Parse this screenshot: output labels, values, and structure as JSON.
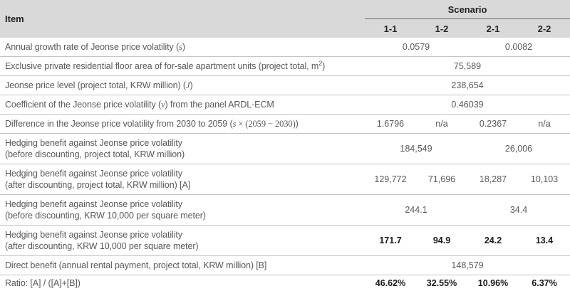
{
  "colors": {
    "header_bg": "#d9d9d9",
    "header_fg": "#242424",
    "body_fg": "#595959",
    "strong_fg": "#1a1a1a",
    "line_light": "#c4c4c4",
    "line_dark": "#6b6b6b",
    "line_bottom": "#3d3d3d"
  },
  "table": {
    "item_header": "Item",
    "scenario_header": "Scenario",
    "scenario_cols": [
      "1-1",
      "1-2",
      "2-1",
      "2-2"
    ],
    "rows": [
      {
        "item": [
          [
            {
              "t": "p",
              "v": "Annual growth rate of Jeonse price volatility ("
            },
            {
              "t": "i",
              "v": "s"
            },
            {
              "t": "p",
              "v": ")"
            }
          ]
        ],
        "cells": [
          {
            "v": "0.0579",
            "span": 2
          },
          {
            "v": "0.0082",
            "span": 2
          }
        ]
      },
      {
        "item": [
          [
            {
              "t": "p",
              "v": "Exclusive private residential floor area of for-sale apartment units (project total, m"
            },
            {
              "t": "sup",
              "v": "2"
            },
            {
              "t": "p",
              "v": ")"
            }
          ]
        ],
        "cells": [
          {
            "v": "75,589",
            "span": 4
          }
        ]
      },
      {
        "item": [
          [
            {
              "t": "p",
              "v": "Jeonse price level (project total, KRW million) ("
            },
            {
              "t": "i",
              "v": "J"
            },
            {
              "t": "p",
              "v": ")"
            }
          ]
        ],
        "cells": [
          {
            "v": "238,654",
            "span": 4
          }
        ]
      },
      {
        "item": [
          [
            {
              "t": "p",
              "v": "Coefficient of the Jeonse price volatility ("
            },
            {
              "t": "i",
              "v": "v"
            },
            {
              "t": "p",
              "v": ") from the panel ARDL-ECM"
            }
          ]
        ],
        "cells": [
          {
            "v": "0.46039",
            "span": 4
          }
        ]
      },
      {
        "item": [
          [
            {
              "t": "p",
              "v": "Difference in the Jeonse price volatility from 2030 to 2059 ("
            },
            {
              "t": "i",
              "v": "s"
            },
            {
              "t": "r",
              "v": " × (2059 − 2030)"
            },
            {
              "t": "p",
              "v": ")"
            }
          ]
        ],
        "cells": [
          {
            "v": "1.6796"
          },
          {
            "v": "n/a"
          },
          {
            "v": "0.2367"
          },
          {
            "v": "n/a"
          }
        ]
      },
      {
        "item": [
          [
            {
              "t": "p",
              "v": "Hedging benefit against Jeonse price volatility"
            }
          ],
          [
            {
              "t": "p",
              "v": "(before discounting, project total, KRW million)"
            }
          ]
        ],
        "cells": [
          {
            "v": "184,549",
            "span": 2
          },
          {
            "v": "26,006",
            "span": 2
          }
        ]
      },
      {
        "item": [
          [
            {
              "t": "p",
              "v": "Hedging benefit against Jeonse price volatility"
            }
          ],
          [
            {
              "t": "p",
              "v": "(after discounting, project total, KRW million) [A]"
            }
          ]
        ],
        "cells": [
          {
            "v": "129,772"
          },
          {
            "v": "71,696"
          },
          {
            "v": "18,287"
          },
          {
            "v": "10,103"
          }
        ]
      },
      {
        "item": [
          [
            {
              "t": "p",
              "v": "Hedging benefit against Jeonse price volatility"
            }
          ],
          [
            {
              "t": "p",
              "v": "(before discounting, KRW 10,000 per square meter)"
            }
          ]
        ],
        "cells": [
          {
            "v": "244.1",
            "span": 2
          },
          {
            "v": "34.4",
            "span": 2
          }
        ]
      },
      {
        "item": [
          [
            {
              "t": "p",
              "v": "Hedging benefit against Jeonse price volatility"
            }
          ],
          [
            {
              "t": "p",
              "v": "(after discounting, KRW 10,000 per square meter)"
            }
          ]
        ],
        "cells": [
          {
            "v": "171.7",
            "b": true
          },
          {
            "v": "94.9",
            "b": true
          },
          {
            "v": "24.2",
            "b": true
          },
          {
            "v": "13.4",
            "b": true
          }
        ]
      },
      {
        "item": [
          [
            {
              "t": "p",
              "v": "Direct benefit (annual rental payment, project total, KRW million) [B]"
            }
          ]
        ],
        "cells": [
          {
            "v": "148,579",
            "span": 4
          }
        ]
      },
      {
        "item": [
          [
            {
              "t": "p",
              "v": "Ratio: [A] / ([A]+[B])"
            }
          ]
        ],
        "cells": [
          {
            "v": "46.62%",
            "b": true
          },
          {
            "v": "32.55%",
            "b": true
          },
          {
            "v": "10.96%",
            "b": true
          },
          {
            "v": "6.37%",
            "b": true
          }
        ]
      }
    ]
  }
}
